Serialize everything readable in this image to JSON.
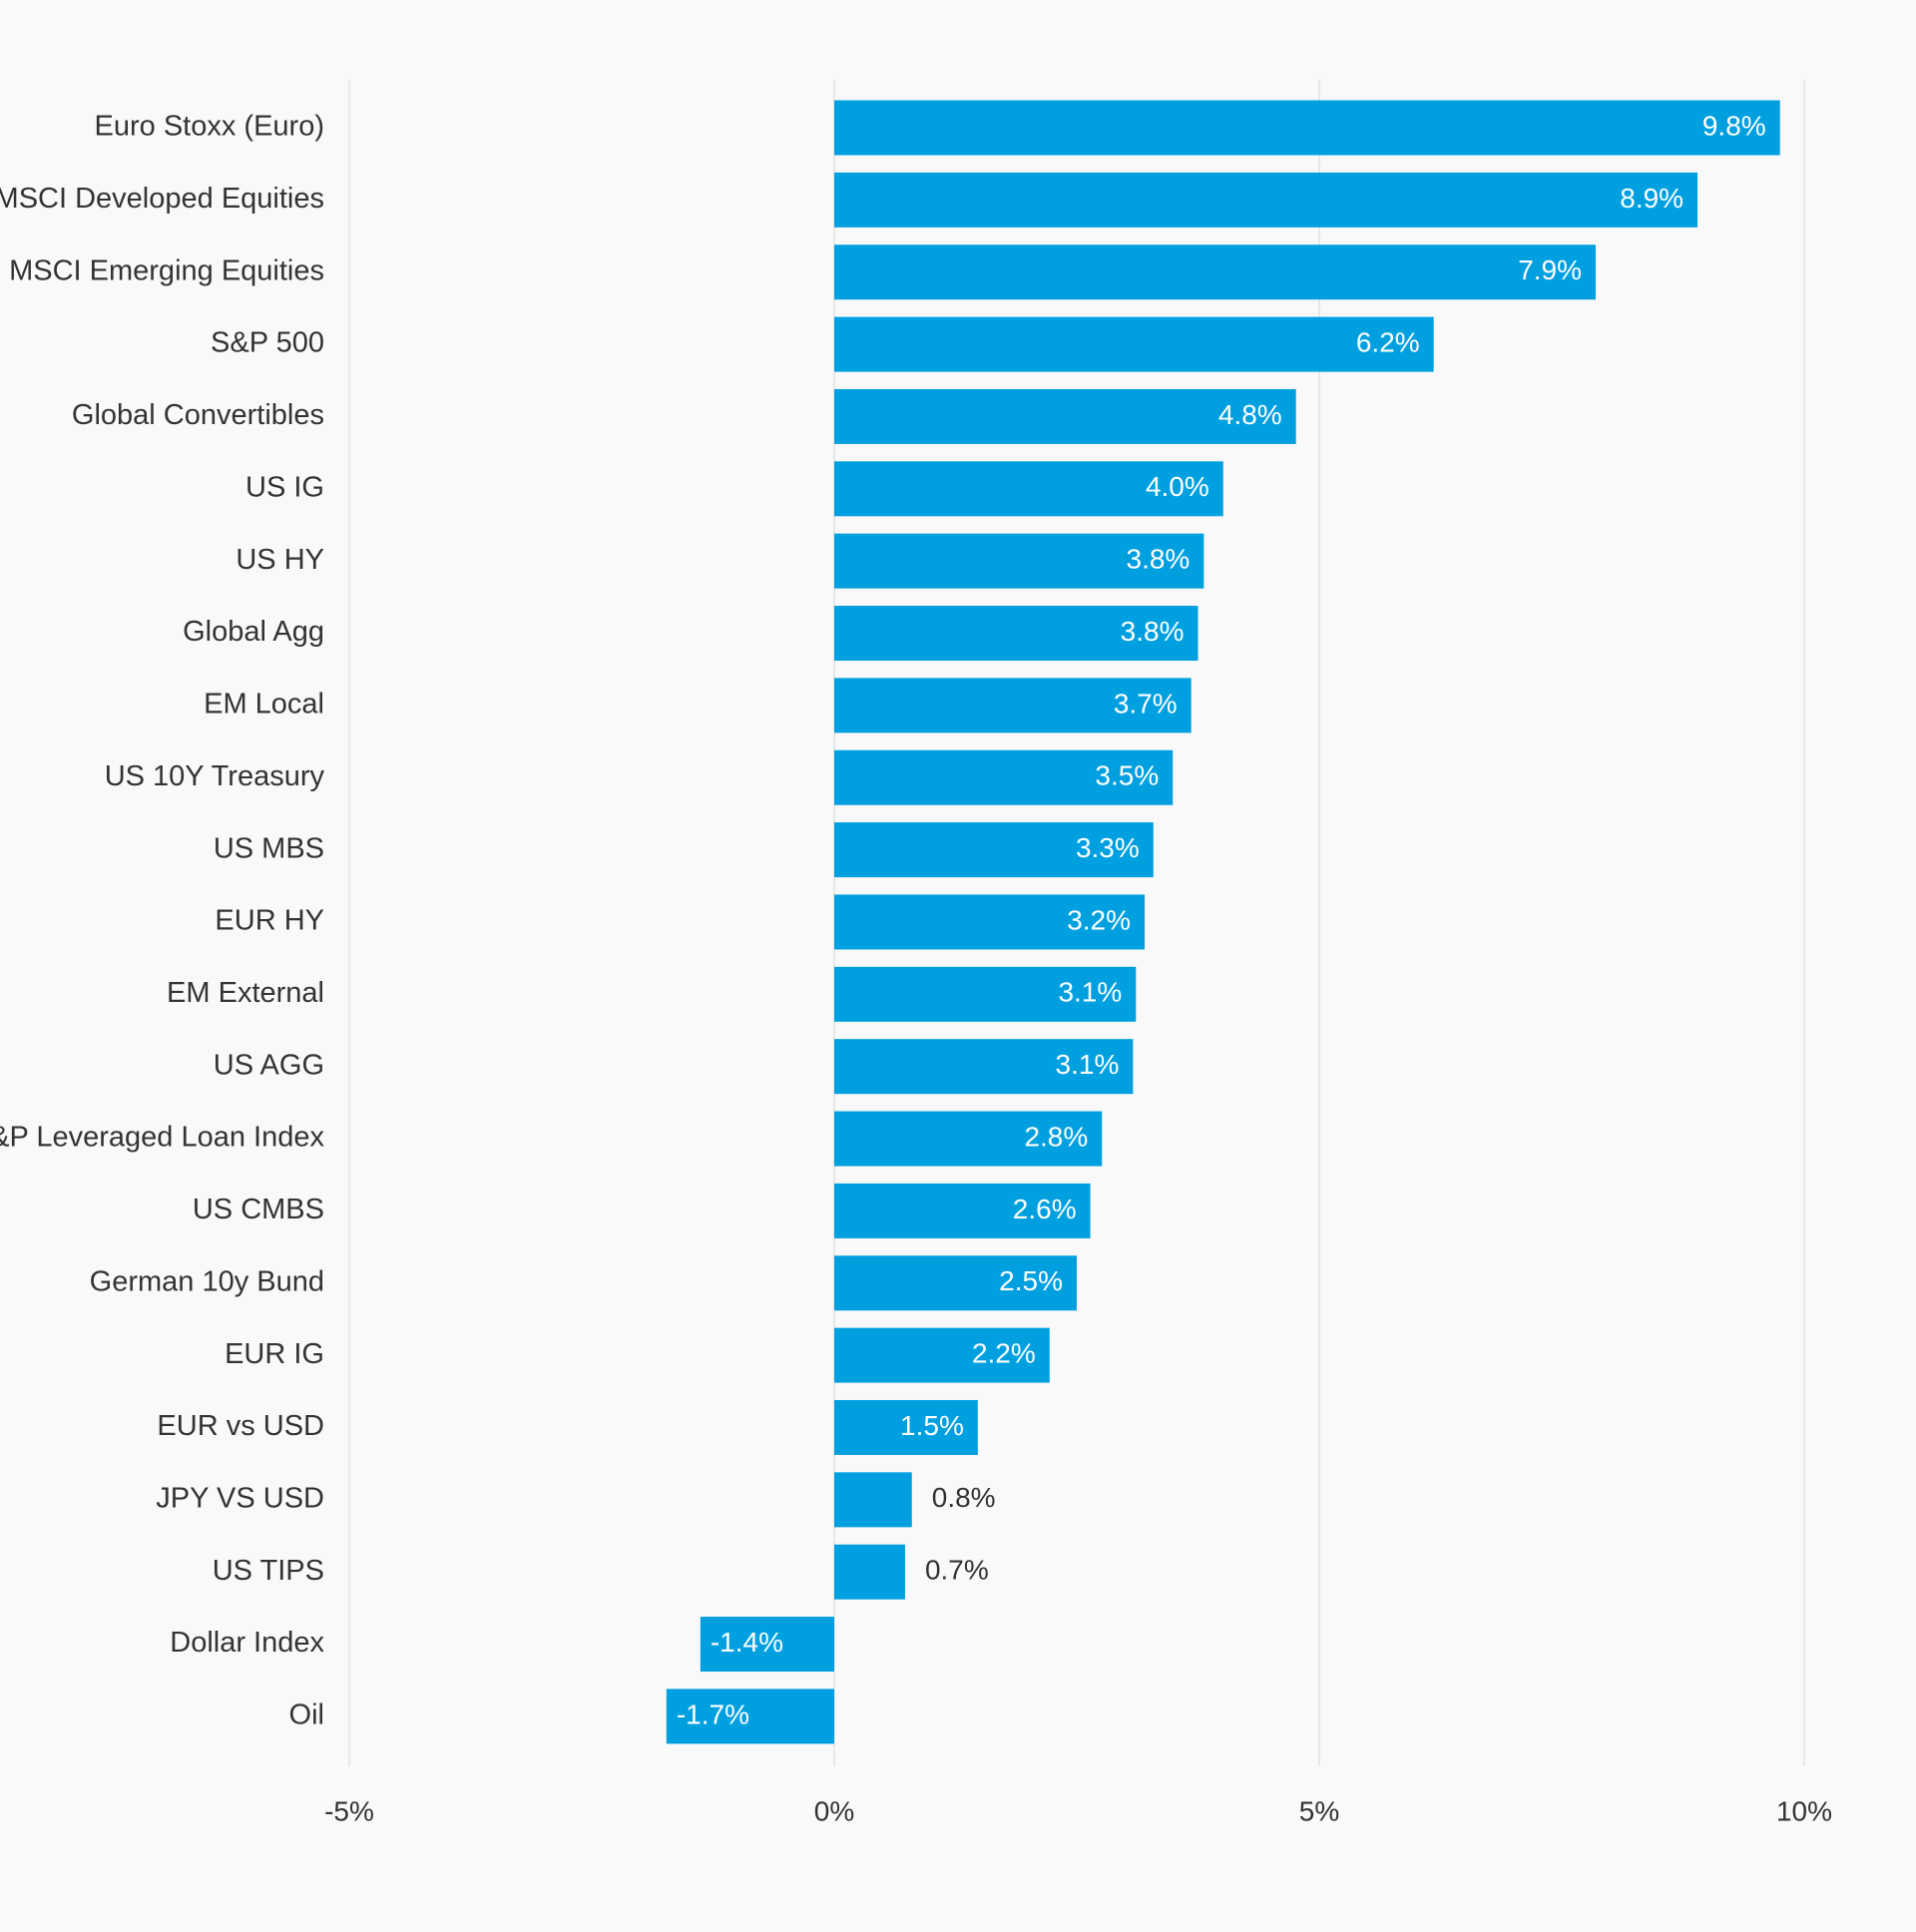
{
  "colors": {
    "background": "#f9f9f9",
    "bar": "#00a0e0",
    "gridline": "#e2e2e2",
    "label_text": "#333333",
    "value_inside": "#ffffff",
    "value_outside": "#333333"
  },
  "chart_data": {
    "type": "bar",
    "orientation": "horizontal",
    "title": "",
    "xlabel": "",
    "ylabel": "",
    "xlim": [
      -5,
      10
    ],
    "xticks": [
      -5,
      0,
      5,
      10
    ],
    "xtick_labels": [
      "-5%",
      "0%",
      "5%",
      "10%"
    ],
    "grid": true,
    "categories": [
      "Euro Stoxx (Euro)",
      "MSCI Developed Equities",
      "MSCI Emerging Equities",
      "S&P 500",
      "Global Convertibles",
      "US IG",
      "US HY",
      "Global Agg",
      "EM Local",
      "US 10Y Treasury",
      "US MBS",
      "EUR HY",
      "EM External",
      "US AGG",
      "S&P Leveraged Loan Index",
      "US CMBS",
      "German 10y Bund",
      "EUR IG",
      "EUR vs USD",
      "JPY VS USD",
      "US TIPS",
      "Dollar Index",
      "Oil"
    ],
    "values": [
      9.75,
      8.9,
      7.85,
      6.18,
      4.76,
      4.01,
      3.81,
      3.75,
      3.68,
      3.49,
      3.29,
      3.2,
      3.11,
      3.08,
      2.76,
      2.64,
      2.5,
      2.22,
      1.48,
      0.8,
      0.73,
      -1.38,
      -1.73
    ],
    "value_labels": [
      "9.8%",
      "8.9%",
      "7.9%",
      "6.2%",
      "4.8%",
      "4.0%",
      "3.8%",
      "3.8%",
      "3.7%",
      "3.5%",
      "3.3%",
      "3.2%",
      "3.1%",
      "3.1%",
      "2.8%",
      "2.6%",
      "2.5%",
      "2.2%",
      "1.5%",
      "0.8%",
      "0.7%",
      "-1.4%",
      "-1.7%"
    ]
  }
}
